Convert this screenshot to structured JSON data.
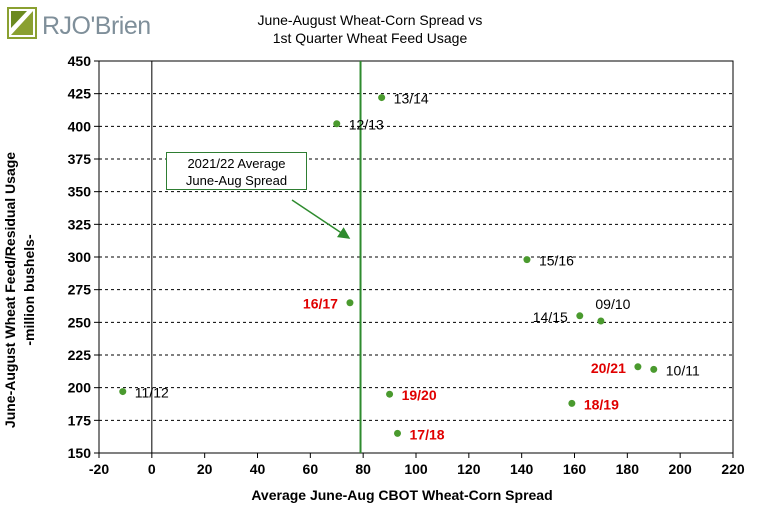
{
  "logo": {
    "text": "RJO'Brien",
    "icon": "rjo-brien-logo-mark"
  },
  "colors": {
    "point": "#4a9a2e",
    "ref_line": "#2e8b2e",
    "label_black": "#000000",
    "label_red": "#e00000"
  },
  "callout": {
    "line1": "2021/22 Average",
    "line2": "June-Aug Spread"
  },
  "chart_data": {
    "type": "scatter",
    "title": "June-August Wheat-Corn Spread vs",
    "subtitle": "1st Quarter Wheat Feed Usage",
    "xlabel": "Average June-Aug CBOT Wheat-Corn Spread",
    "ylabel_line1": "June-August Wheat Feed/Residual Usage",
    "ylabel_line2": "-million bushels-",
    "xlim": [
      -20,
      220
    ],
    "ylim": [
      150,
      450
    ],
    "xticks": [
      "-20",
      "0",
      "20",
      "40",
      "60",
      "80",
      "100",
      "120",
      "140",
      "160",
      "180",
      "200",
      "220"
    ],
    "yticks": [
      "150",
      "175",
      "200",
      "225",
      "250",
      "275",
      "300",
      "325",
      "350",
      "375",
      "400",
      "425",
      "450"
    ],
    "grid": "horizontal dashed",
    "reference_line_x": 79,
    "points": [
      {
        "label": "13/14",
        "x": 87,
        "y": 422,
        "color": "black",
        "label_side": "right"
      },
      {
        "label": "12/13",
        "x": 70,
        "y": 402,
        "color": "black",
        "label_side": "right"
      },
      {
        "label": "15/16",
        "x": 142,
        "y": 298,
        "color": "black",
        "label_side": "right"
      },
      {
        "label": "16/17",
        "x": 75,
        "y": 265,
        "color": "red",
        "label_side": "left"
      },
      {
        "label": "14/15",
        "x": 162,
        "y": 255,
        "color": "black",
        "label_side": "left"
      },
      {
        "label": "09/10",
        "x": 170,
        "y": 251,
        "color": "black",
        "label_side": "above"
      },
      {
        "label": "20/21",
        "x": 184,
        "y": 216,
        "color": "red",
        "label_side": "left"
      },
      {
        "label": "10/11",
        "x": 190,
        "y": 214,
        "color": "black",
        "label_side": "right"
      },
      {
        "label": "11/12",
        "x": -11,
        "y": 197,
        "color": "black",
        "label_side": "right"
      },
      {
        "label": "19/20",
        "x": 90,
        "y": 195,
        "color": "red",
        "label_side": "right"
      },
      {
        "label": "18/19",
        "x": 159,
        "y": 188,
        "color": "red",
        "label_side": "right"
      },
      {
        "label": "17/18",
        "x": 93,
        "y": 165,
        "color": "red",
        "label_side": "right"
      }
    ]
  }
}
